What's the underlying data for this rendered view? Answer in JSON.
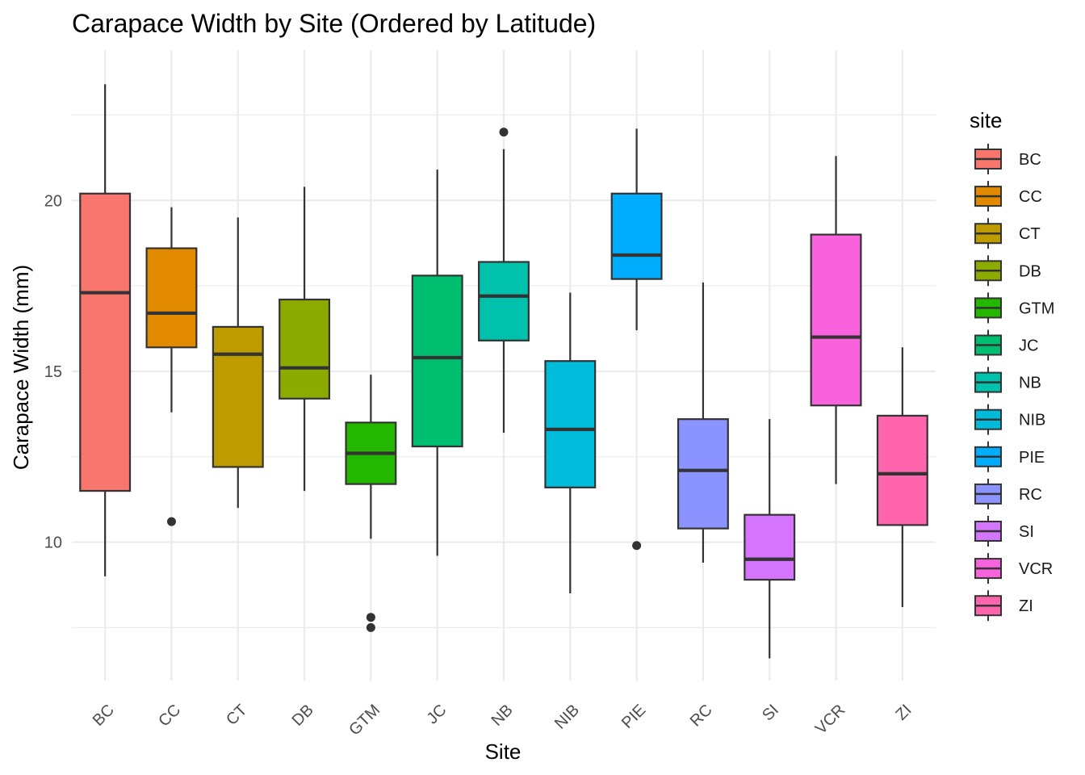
{
  "chart_data": {
    "type": "boxplot",
    "title": "Carapace Width by Site (Ordered by Latitude)",
    "xlabel": "Site",
    "ylabel": "Carapace Width (mm)",
    "ylim": [
      5.95,
      24.4
    ],
    "yticks": [
      10,
      15,
      20
    ],
    "grid": true,
    "legend": {
      "title": "site",
      "position": "right"
    },
    "categories": [
      "BC",
      "CC",
      "CT",
      "DB",
      "GTM",
      "JC",
      "NB",
      "NIB",
      "PIE",
      "RC",
      "SI",
      "VCR",
      "ZI"
    ],
    "colors": [
      "#F8766D",
      "#E18A00",
      "#BE9C00",
      "#8CAB00",
      "#24B700",
      "#00BE70",
      "#00C1AB",
      "#00BBDA",
      "#00ACFC",
      "#8B93FF",
      "#D575FE",
      "#F962DD",
      "#FF65AC"
    ],
    "boxes": [
      {
        "site": "BC",
        "min": 9.0,
        "q1": 11.5,
        "median": 17.3,
        "q3": 20.2,
        "max": 23.4,
        "outliers": []
      },
      {
        "site": "CC",
        "min": 13.8,
        "q1": 15.7,
        "median": 16.7,
        "q3": 18.6,
        "max": 19.8,
        "outliers": [
          10.6
        ]
      },
      {
        "site": "CT",
        "min": 11.0,
        "q1": 12.2,
        "median": 15.5,
        "q3": 16.3,
        "max": 19.5,
        "outliers": []
      },
      {
        "site": "DB",
        "min": 11.5,
        "q1": 14.2,
        "median": 15.1,
        "q3": 17.1,
        "max": 20.4,
        "outliers": []
      },
      {
        "site": "GTM",
        "min": 10.1,
        "q1": 11.7,
        "median": 12.6,
        "q3": 13.5,
        "max": 14.9,
        "outliers": [
          7.8,
          7.5
        ]
      },
      {
        "site": "JC",
        "min": 9.6,
        "q1": 12.8,
        "median": 15.4,
        "q3": 17.8,
        "max": 20.9,
        "outliers": []
      },
      {
        "site": "NB",
        "min": 13.2,
        "q1": 15.9,
        "median": 17.2,
        "q3": 18.2,
        "max": 21.5,
        "outliers": [
          22.0
        ]
      },
      {
        "site": "NIB",
        "min": 8.5,
        "q1": 11.6,
        "median": 13.3,
        "q3": 15.3,
        "max": 17.3,
        "outliers": []
      },
      {
        "site": "PIE",
        "min": 16.2,
        "q1": 17.7,
        "median": 18.4,
        "q3": 20.2,
        "max": 22.1,
        "outliers": [
          9.9
        ]
      },
      {
        "site": "RC",
        "min": 9.4,
        "q1": 10.4,
        "median": 12.1,
        "q3": 13.6,
        "max": 17.6,
        "outliers": []
      },
      {
        "site": "SI",
        "min": 6.6,
        "q1": 8.9,
        "median": 9.5,
        "q3": 10.8,
        "max": 13.6,
        "outliers": []
      },
      {
        "site": "VCR",
        "min": 11.7,
        "q1": 14.0,
        "median": 16.0,
        "q3": 19.0,
        "max": 21.3,
        "outliers": []
      },
      {
        "site": "ZI",
        "min": 8.1,
        "q1": 10.5,
        "median": 12.0,
        "q3": 13.7,
        "max": 15.7,
        "outliers": []
      }
    ]
  }
}
